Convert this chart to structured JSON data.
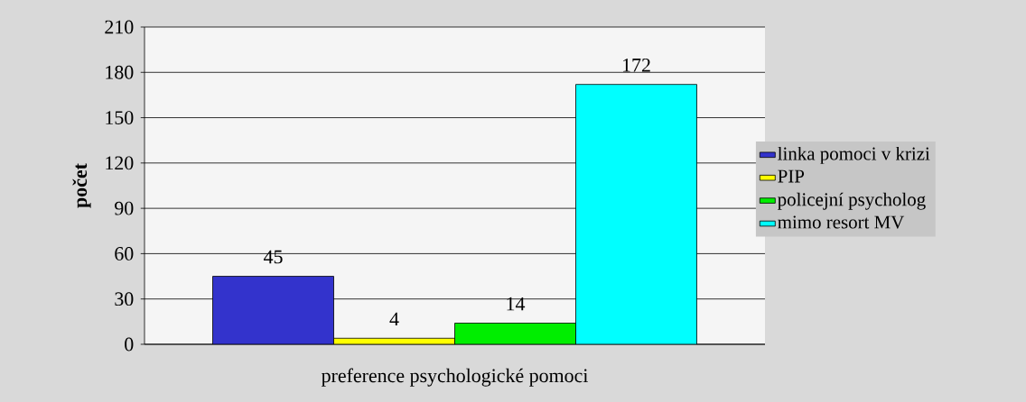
{
  "chart_data": {
    "type": "bar",
    "xlabel": "preference psychologické pomoci",
    "ylabel": "počet",
    "categories": [
      null
    ],
    "series": [
      {
        "name": "linka pomoci v krizi",
        "color": "#3333cc",
        "values": [
          45
        ]
      },
      {
        "name": "PIP",
        "color": "#ffff00",
        "values": [
          4
        ]
      },
      {
        "name": "policejní psycholog",
        "color": "#00ee00",
        "values": [
          14
        ]
      },
      {
        "name": "mimo resort MV",
        "color": "#00ffff",
        "values": [
          172
        ]
      }
    ],
    "ylim": [
      0,
      210
    ],
    "yticks": [
      0,
      30,
      60,
      90,
      120,
      150,
      180,
      210
    ],
    "grid": "y",
    "legend": "right",
    "data_labels": true
  }
}
